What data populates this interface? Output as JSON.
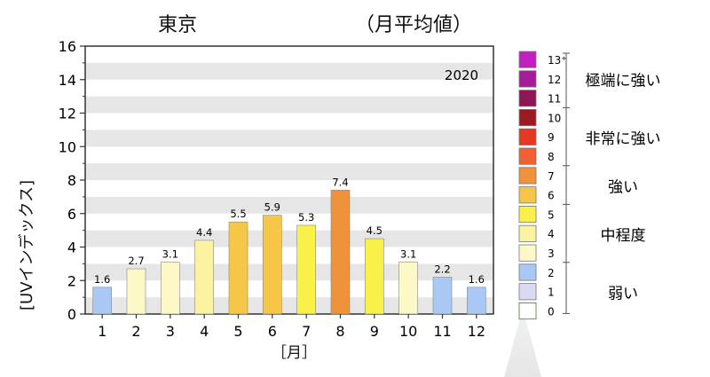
{
  "chart_data": {
    "type": "bar",
    "title": "東京",
    "subtitle": "（月平均値）",
    "year_label": "2020",
    "xlabel": "［月］",
    "ylabel": "[UVインデックス]",
    "ylim": [
      0,
      16
    ],
    "yticks": [
      "0",
      "2",
      "4",
      "6",
      "8",
      "10",
      "12",
      "14",
      "16"
    ],
    "grid": "horizontal bands",
    "categories": [
      "1",
      "2",
      "3",
      "4",
      "5",
      "6",
      "7",
      "8",
      "9",
      "10",
      "11",
      "12"
    ],
    "values": [
      1.6,
      2.7,
      3.1,
      4.4,
      5.5,
      5.9,
      5.3,
      7.4,
      4.5,
      3.1,
      2.2,
      1.6
    ],
    "value_labels": [
      "1.6",
      "2.7",
      "3.1",
      "4.4",
      "5.5",
      "5.9",
      "5.3",
      "7.4",
      "4.5",
      "3.1",
      "2.2",
      "1.6"
    ]
  },
  "legend": {
    "levels": [
      {
        "label": "13⁺",
        "color": "#c21fc2"
      },
      {
        "label": "12",
        "color": "#a51b9b"
      },
      {
        "label": "11",
        "color": "#8c1656"
      },
      {
        "label": "10",
        "color": "#9c1a22"
      },
      {
        "label": "9",
        "color": "#e43a23"
      },
      {
        "label": "8",
        "color": "#f06030"
      },
      {
        "label": "7",
        "color": "#f0923a"
      },
      {
        "label": "6",
        "color": "#f6c646"
      },
      {
        "label": "5",
        "color": "#f9f04a"
      },
      {
        "label": "4",
        "color": "#faf2a0"
      },
      {
        "label": "3",
        "color": "#fdf8c8"
      },
      {
        "label": "2",
        "color": "#a9c9f4"
      },
      {
        "label": "1",
        "color": "#d7dcf3"
      },
      {
        "label": "0",
        "color": "#ffffff"
      }
    ],
    "categories": [
      {
        "label": "極端に強い"
      },
      {
        "label": "非常に強い"
      },
      {
        "label": "強い"
      },
      {
        "label": "中程度"
      },
      {
        "label": "弱い"
      }
    ]
  }
}
